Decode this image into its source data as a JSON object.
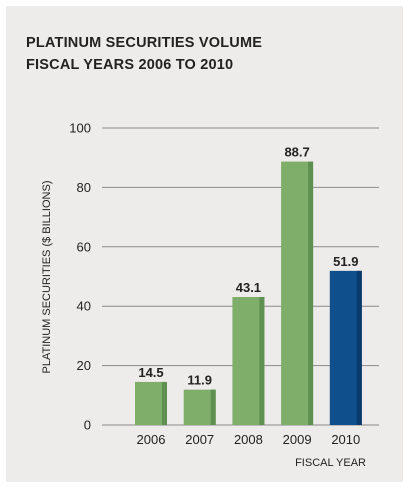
{
  "chart_data": {
    "type": "bar",
    "title_lines": [
      "PLATINUM SECURITIES VOLUME",
      "FISCAL YEARS 2006 TO 2010"
    ],
    "xlabel": "FISCAL YEAR",
    "ylabel": "PLATINUM SECURITIES ($ BILLIONS)",
    "categories": [
      "2006",
      "2007",
      "2008",
      "2009",
      "2010"
    ],
    "values": [
      14.5,
      11.9,
      43.1,
      88.7,
      51.9
    ],
    "value_labels": [
      "14.5",
      "11.9",
      "43.1",
      "88.7",
      "51.9"
    ],
    "ylim": [
      0,
      100
    ],
    "yticks": [
      0,
      20,
      40,
      60,
      80,
      100
    ],
    "grid": true,
    "colors": {
      "default_bar": "#7fae6a",
      "default_bar_shade": "#5e9150",
      "highlight_bar": "#0e4f8c",
      "highlight_bar_shade": "#093a6b",
      "gridline": "#8a8a8a",
      "background": "#eeeceb"
    },
    "highlight_index": 4
  }
}
